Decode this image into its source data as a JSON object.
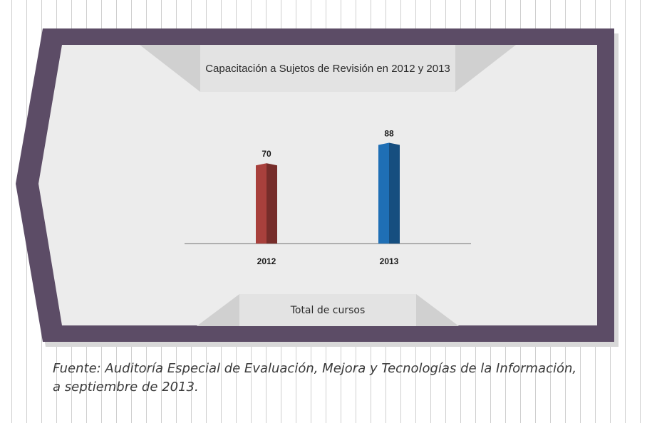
{
  "chart_data": {
    "type": "bar",
    "title": "Capacitación a Sujetos de Revisión en 2012 y 2013",
    "xlabel": "Total de cursos",
    "ylabel": "",
    "categories": [
      "2012",
      "2013"
    ],
    "values": [
      70,
      88
    ],
    "colors": [
      "#a8403c",
      "#1f6fb5"
    ],
    "ylim": [
      0,
      100
    ],
    "grid": false,
    "legend": "none"
  },
  "source": {
    "line1": "Fuente:  Auditoría Especial de Evaluación, Mejora y Tecnologías de la Información,",
    "line2": "a septiembre de 2013."
  },
  "colors": {
    "frame": "#5c4c66",
    "panel": "#ececec",
    "banner": "#e3e3e3",
    "banner_side": "#cfcfcf",
    "axis": "#8a8a8a"
  }
}
